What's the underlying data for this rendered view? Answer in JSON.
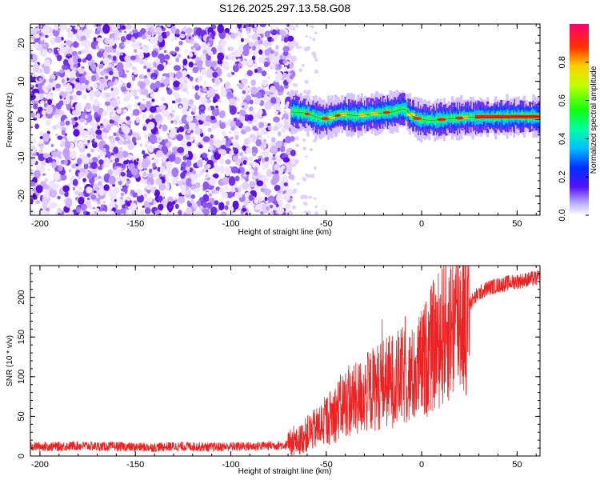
{
  "figure_title": "S126.2025.297.13.58.G08",
  "chart_data": [
    {
      "type": "heatmap",
      "title": "S126.2025.297.13.58.G08",
      "xlabel": "Height of straight line (km)",
      "ylabel": "Frequency (Hz)",
      "xlim": [
        -205,
        62
      ],
      "ylim": [
        -25,
        25
      ],
      "xticks": [
        -200,
        -150,
        -100,
        -50,
        0,
        50
      ],
      "xtick_labels": [
        "-200",
        "-150",
        "-100",
        "-50",
        "0",
        "50"
      ],
      "yticks": [
        -20,
        -10,
        0,
        10,
        20
      ],
      "ytick_labels": [
        "-20",
        "-10",
        "0",
        "10",
        "20"
      ],
      "noise_region_x": [
        -205,
        -67
      ],
      "signal_track": {
        "x": [
          -68,
          -62,
          -58,
          -55,
          -52,
          -48,
          -45,
          -40,
          -35,
          -30,
          -25,
          -20,
          -15,
          -10,
          -8,
          -5,
          -2,
          0,
          5,
          10,
          15,
          20,
          25,
          30,
          35,
          40,
          45,
          50,
          55,
          62
        ],
        "freq": [
          2.0,
          1.8,
          1.2,
          0.6,
          0.2,
          0.4,
          1.0,
          1.4,
          1.0,
          1.2,
          1.5,
          1.8,
          2.0,
          2.8,
          2.5,
          1.0,
          0.2,
          0.0,
          -0.2,
          0.0,
          0.2,
          0.4,
          0.6,
          0.6,
          0.6,
          0.7,
          0.7,
          0.8,
          0.8,
          0.8
        ]
      },
      "colorbar": {
        "label": "Normalized spectral amplitude",
        "range": [
          0.0,
          1.0
        ],
        "ticks": [
          0.0,
          0.2,
          0.4,
          0.6,
          0.8
        ],
        "tick_labels": [
          "0.0",
          "0.2",
          "0.4",
          "0.6",
          "0.8"
        ]
      }
    },
    {
      "type": "line",
      "title": "",
      "xlabel": "Height of straight line (km)",
      "ylabel": "SNR (10 * v/v)",
      "xlim": [
        -205,
        62
      ],
      "ylim": [
        0,
        240
      ],
      "xticks": [
        -200,
        -150,
        -100,
        -50,
        0,
        50
      ],
      "xtick_labels": [
        "-200",
        "-150",
        "-100",
        "-50",
        "0",
        "50"
      ],
      "yticks": [
        0,
        50,
        100,
        150,
        200
      ],
      "ytick_labels": [
        "0",
        "50",
        "100",
        "150",
        "200"
      ],
      "series": [
        {
          "name": "SNR",
          "color": "#ee2222",
          "x": [
            -205,
            -190,
            -180,
            -170,
            -160,
            -150,
            -140,
            -130,
            -120,
            -110,
            -100,
            -90,
            -80,
            -70,
            -65,
            -60,
            -55,
            -50,
            -45,
            -40,
            -35,
            -30,
            -25,
            -20,
            -15,
            -10,
            -5,
            0,
            5,
            10,
            15,
            20,
            25,
            30,
            35,
            40,
            45,
            50,
            55,
            62
          ],
          "y": [
            12,
            12,
            13,
            12,
            12,
            11,
            11,
            12,
            12,
            11,
            12,
            12,
            13,
            14,
            18,
            28,
            35,
            45,
            55,
            68,
            70,
            78,
            85,
            92,
            95,
            100,
            100,
            115,
            135,
            150,
            165,
            178,
            192,
            205,
            212,
            215,
            218,
            220,
            222,
            225
          ]
        }
      ]
    }
  ]
}
